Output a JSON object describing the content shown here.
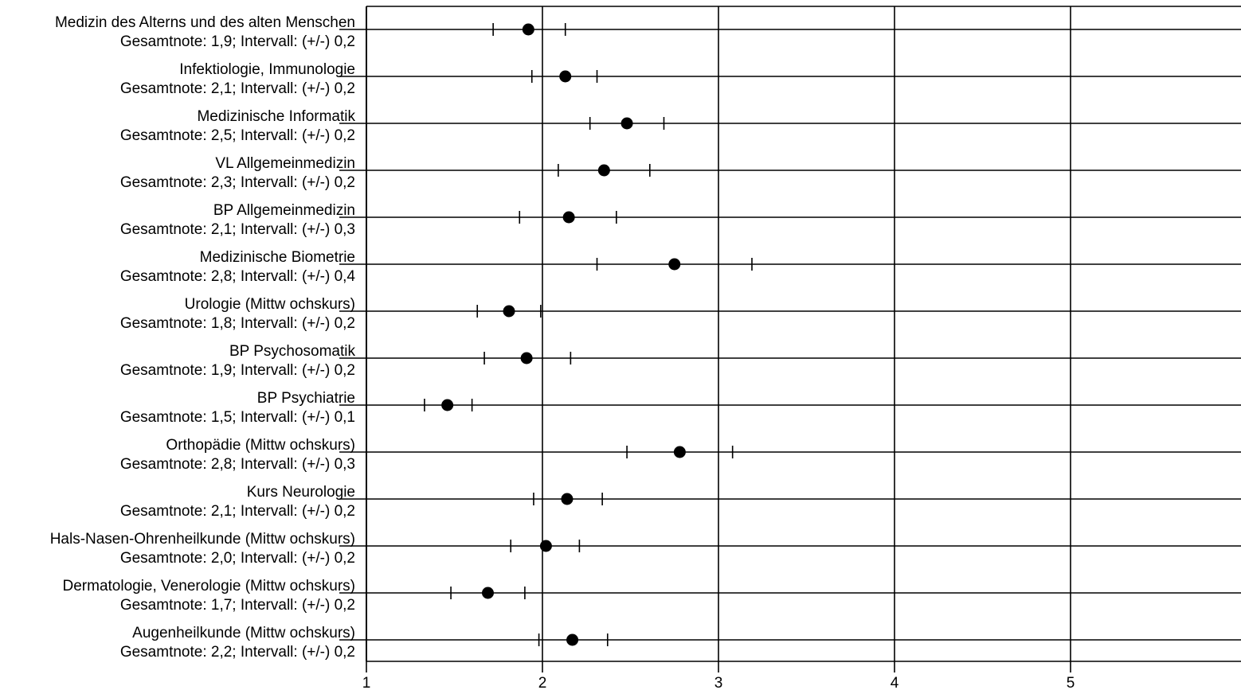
{
  "chart_data": {
    "type": "scatter",
    "orientation": "horizontal",
    "xlim": [
      1,
      5.97
    ],
    "x_ticks": [
      1,
      2,
      3,
      4,
      5
    ],
    "x_tick_labels": [
      "1",
      "2",
      "3",
      "4",
      "5"
    ],
    "grid": "vertical",
    "colors": {
      "line": "#000000",
      "marker": "#000000",
      "background": "#ffffff"
    },
    "rows": [
      {
        "title": "Medizin des Alterns und des alten Menschen",
        "subtitle": "Gesamtnote: 1,9;  Intervall: (+/-) 0,2",
        "mean": 1.92,
        "low": 1.72,
        "high": 2.13
      },
      {
        "title": "Infektiologie, Immunologie",
        "subtitle": "Gesamtnote: 2,1;  Intervall: (+/-) 0,2",
        "mean": 2.13,
        "low": 1.94,
        "high": 2.31
      },
      {
        "title": "Medizinische Informatik",
        "subtitle": "Gesamtnote: 2,5;  Intervall: (+/-) 0,2",
        "mean": 2.48,
        "low": 2.27,
        "high": 2.69
      },
      {
        "title": "VL Allgemeinmedizin",
        "subtitle": "Gesamtnote: 2,3;  Intervall: (+/-) 0,2",
        "mean": 2.35,
        "low": 2.09,
        "high": 2.61
      },
      {
        "title": "BP Allgemeinmedizin",
        "subtitle": "Gesamtnote: 2,1;  Intervall: (+/-) 0,3",
        "mean": 2.15,
        "low": 1.87,
        "high": 2.42
      },
      {
        "title": "Medizinische Biometrie",
        "subtitle": "Gesamtnote: 2,8;  Intervall: (+/-) 0,4",
        "mean": 2.75,
        "low": 2.31,
        "high": 3.19
      },
      {
        "title": "Urologie (Mittw ochskurs)",
        "subtitle": "Gesamtnote: 1,8;  Intervall: (+/-) 0,2",
        "mean": 1.81,
        "low": 1.63,
        "high": 1.99
      },
      {
        "title": "BP Psychosomatik",
        "subtitle": "Gesamtnote: 1,9;  Intervall: (+/-) 0,2",
        "mean": 1.91,
        "low": 1.67,
        "high": 2.16
      },
      {
        "title": "BP Psychiatrie",
        "subtitle": "Gesamtnote: 1,5;  Intervall: (+/-) 0,1",
        "mean": 1.46,
        "low": 1.33,
        "high": 1.6
      },
      {
        "title": "Orthopädie (Mittw ochskurs)",
        "subtitle": "Gesamtnote: 2,8;  Intervall: (+/-) 0,3",
        "mean": 2.78,
        "low": 2.48,
        "high": 3.08
      },
      {
        "title": "Kurs Neurologie",
        "subtitle": "Gesamtnote: 2,1;  Intervall: (+/-) 0,2",
        "mean": 2.14,
        "low": 1.95,
        "high": 2.34
      },
      {
        "title": "Hals-Nasen-Ohrenheilkunde (Mittw ochskurs)",
        "subtitle": "Gesamtnote: 2,0;  Intervall: (+/-) 0,2",
        "mean": 2.02,
        "low": 1.82,
        "high": 2.21
      },
      {
        "title": "Dermatologie, Venerologie (Mittw ochskurs)",
        "subtitle": "Gesamtnote: 1,7;  Intervall: (+/-) 0,2",
        "mean": 1.69,
        "low": 1.48,
        "high": 1.9
      },
      {
        "title": "Augenheilkunde (Mittw ochskurs)",
        "subtitle": "Gesamtnote: 2,2;  Intervall: (+/-) 0,2",
        "mean": 2.17,
        "low": 1.98,
        "high": 2.37
      }
    ]
  }
}
